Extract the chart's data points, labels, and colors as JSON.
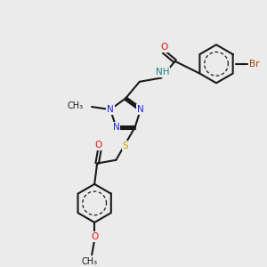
{
  "bg_color": "#ebebeb",
  "bond_color": "#1a1a1a",
  "N_color": "#2020ee",
  "O_color": "#ee1010",
  "S_color": "#c8a000",
  "Br_color": "#a04000",
  "H_color": "#208080",
  "font_size": 7.5,
  "bond_lw": 1.5,
  "fig_w": 3.0,
  "fig_h": 3.0,
  "dpi": 100,
  "xlim": [
    0,
    10
  ],
  "ylim": [
    0,
    10
  ]
}
